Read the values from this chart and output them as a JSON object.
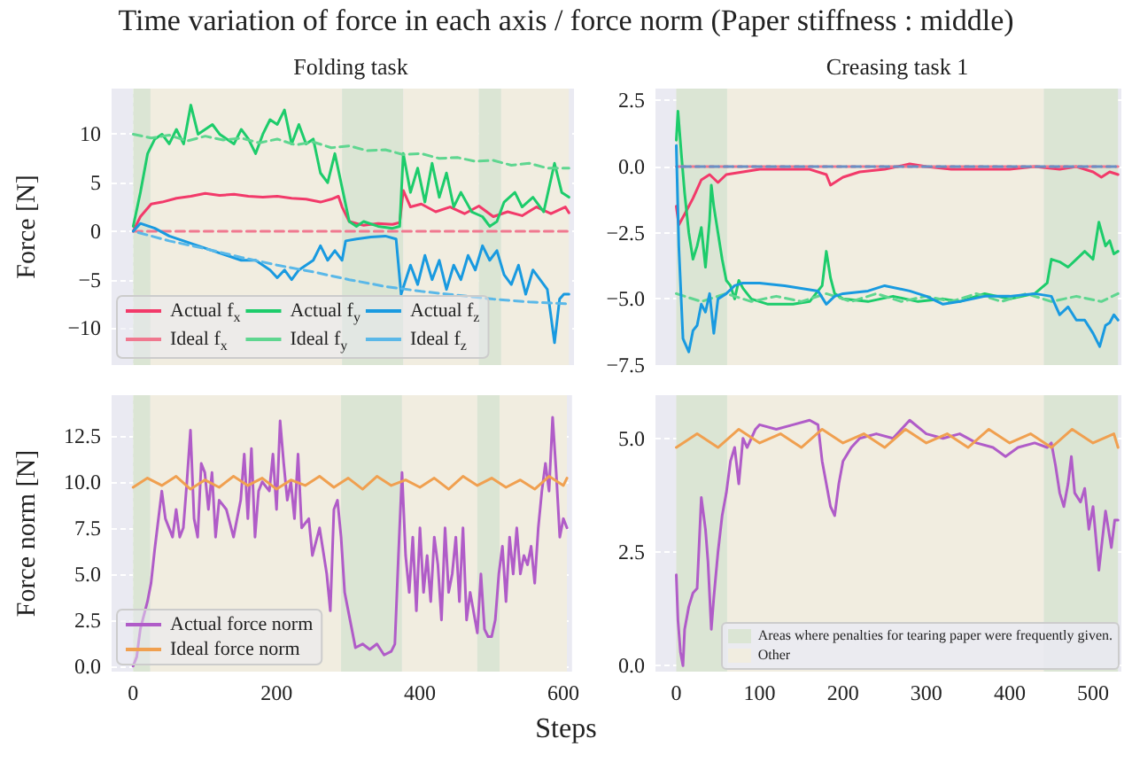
{
  "chart_data": [
    {
      "type": "line",
      "title": "Folding task",
      "ylabel": "Force [N]",
      "annotations": [
        "Time variation of force in each axis / force norm (Paper stiffness : middle)"
      ],
      "xlim": [
        -30,
        612
      ],
      "xticks": [
        0,
        200,
        400,
        600
      ],
      "ylim": [
        -13.8,
        14.7
      ],
      "yticks": [
        {
          "value": -10,
          "label": "−10"
        },
        {
          "value": -5,
          "label": "−5"
        },
        0,
        5,
        10
      ],
      "tick_labels": "y",
      "grid": true,
      "legend": "bottom left",
      "bands": [
        {
          "axis": "x",
          "from": 0,
          "to": 24,
          "color": "#dbe5d4"
        },
        {
          "axis": "x",
          "from": 24,
          "to": 290,
          "color": "#f1ede0"
        },
        {
          "axis": "x",
          "from": 290,
          "to": 375,
          "color": "#dbe5d4"
        },
        {
          "axis": "x",
          "from": 375,
          "to": 480,
          "color": "#f1ede0"
        },
        {
          "axis": "x",
          "from": 480,
          "to": 511,
          "color": "#dbe5d4"
        },
        {
          "axis": "x",
          "from": 511,
          "to": 605,
          "color": "#f1ede0"
        }
      ],
      "series": [
        {
          "name": "Actual f$_{x}$",
          "color": "#f23a6a",
          "x": [
            0,
            10,
            25,
            40,
            60,
            80,
            100,
            120,
            140,
            160,
            180,
            200,
            220,
            240,
            260,
            275,
            285,
            290,
            300,
            320,
            340,
            360,
            370,
            375,
            385,
            400,
            420,
            440,
            460,
            480,
            500,
            520,
            540,
            560,
            580,
            600,
            605
          ],
          "values": [
            0,
            1.5,
            2.8,
            3.0,
            3.4,
            3.6,
            3.9,
            3.7,
            3.8,
            3.6,
            3.5,
            3.6,
            3.4,
            3.3,
            3.0,
            3.3,
            3.6,
            2.5,
            1.0,
            0.6,
            0.8,
            0.7,
            0.9,
            4.2,
            2.5,
            2.8,
            2.0,
            2.5,
            1.8,
            2.6,
            1.5,
            2.0,
            1.6,
            2.5,
            1.8,
            2.5,
            1.9
          ]
        },
        {
          "name": "Ideal f$_{x}$",
          "color": "#f0788f",
          "line_style": "dashed",
          "x": [
            0,
            605
          ],
          "values": [
            0,
            0
          ]
        },
        {
          "name": "Actual f$_{y}$",
          "color": "#1dcc6b",
          "x": [
            0,
            10,
            20,
            30,
            40,
            50,
            60,
            70,
            80,
            90,
            100,
            110,
            120,
            130,
            140,
            150,
            160,
            170,
            180,
            190,
            200,
            210,
            220,
            230,
            240,
            250,
            260,
            270,
            280,
            290,
            300,
            310,
            320,
            340,
            360,
            370,
            375,
            385,
            395,
            405,
            415,
            425,
            435,
            445,
            455,
            470,
            485,
            495,
            505,
            515,
            530,
            540,
            555,
            570,
            585,
            595,
            605
          ],
          "values": [
            0.5,
            4,
            8,
            9.5,
            10,
            9,
            10.5,
            9,
            13,
            10,
            10.5,
            11,
            10,
            9.5,
            9,
            10.5,
            9.5,
            8,
            10,
            11.5,
            11,
            12.5,
            9,
            11,
            9,
            9.5,
            6,
            5,
            8,
            4.5,
            1,
            0.5,
            1,
            0.5,
            0.3,
            0.5,
            8,
            4,
            6.5,
            3,
            7,
            3.5,
            6,
            2.5,
            4,
            2,
            1.5,
            0.5,
            1,
            3,
            4,
            2.5,
            3.5,
            2,
            7,
            4,
            3.5
          ]
        },
        {
          "name": "Ideal f$_{y}$",
          "color": "#5fd690",
          "line_style": "dashed",
          "x": [
            0,
            25,
            50,
            75,
            100,
            125,
            150,
            175,
            200,
            225,
            250,
            275,
            300,
            325,
            350,
            375,
            400,
            425,
            450,
            475,
            500,
            525,
            550,
            575,
            605
          ],
          "values": [
            10.0,
            9.6,
            9.9,
            9.3,
            9.8,
            9.4,
            9.6,
            9.1,
            9.5,
            8.9,
            9.2,
            8.6,
            8.8,
            8.3,
            8.4,
            7.9,
            8.0,
            7.5,
            7.6,
            7.2,
            7.3,
            6.8,
            7.0,
            6.5,
            6.5
          ]
        },
        {
          "name": "Actual f$_{z}$",
          "color": "#199ae0",
          "x": [
            0,
            10,
            30,
            50,
            70,
            90,
            110,
            130,
            150,
            170,
            190,
            200,
            210,
            220,
            230,
            240,
            250,
            260,
            270,
            280,
            290,
            295,
            310,
            330,
            350,
            365,
            372,
            385,
            395,
            405,
            415,
            425,
            435,
            445,
            455,
            465,
            475,
            485,
            495,
            505,
            515,
            525,
            535,
            545,
            555,
            565,
            575,
            585,
            592,
            598,
            605
          ],
          "values": [
            0,
            0.8,
            0.3,
            -0.5,
            -1,
            -1.5,
            -2,
            -2.5,
            -3,
            -3,
            -4,
            -4.8,
            -4,
            -5,
            -4,
            -3.5,
            -3,
            -1.5,
            -3,
            -2,
            -3,
            -1,
            -0.8,
            -0.6,
            -0.5,
            -0.8,
            -6.5,
            -3.5,
            -5.5,
            -2.5,
            -5,
            -3,
            -6,
            -3.5,
            -5,
            -2.5,
            -4,
            -1.5,
            -3,
            -2,
            -4.5,
            -5.5,
            -3.5,
            -6.5,
            -4,
            -5,
            -6,
            -11.5,
            -7,
            -6.5,
            -6.5
          ]
        },
        {
          "name": "Ideal f$_{z}$",
          "color": "#5ab8e8",
          "line_style": "dashed",
          "x": [
            0,
            50,
            100,
            150,
            200,
            250,
            300,
            350,
            400,
            450,
            500,
            550,
            605
          ],
          "values": [
            0,
            -1.0,
            -1.8,
            -2.7,
            -3.5,
            -4.2,
            -5.0,
            -5.7,
            -6.2,
            -6.6,
            -7.0,
            -7.3,
            -7.5
          ]
        }
      ]
    },
    {
      "type": "line",
      "title": "Creasing task 1",
      "xlim": [
        -25,
        534
      ],
      "xticks": [
        0,
        100,
        200,
        300,
        400,
        500
      ],
      "ylim": [
        -7.5,
        2.95
      ],
      "yticks": [
        {
          "value": -7.5,
          "label": "−7.5"
        },
        {
          "value": -5,
          "label": "−5.0"
        },
        {
          "value": -2.5,
          "label": "−2.5"
        },
        {
          "value": 0,
          "label": "0.0"
        },
        2.5
      ],
      "tick_labels": "y",
      "grid": true,
      "bands": [
        {
          "axis": "x",
          "from": 0,
          "to": 61,
          "color": "#dbe5d4"
        },
        {
          "axis": "x",
          "from": 61,
          "to": 441,
          "color": "#f1ede0"
        },
        {
          "axis": "x",
          "from": 441,
          "to": 530,
          "color": "#dbe5d4"
        }
      ],
      "series": [
        {
          "color": "#f23a6a",
          "x": [
            0,
            3,
            10,
            20,
            30,
            40,
            50,
            60,
            80,
            100,
            130,
            160,
            180,
            185,
            200,
            220,
            250,
            280,
            300,
            330,
            360,
            400,
            430,
            460,
            480,
            500,
            510,
            520,
            530
          ],
          "values": [
            -1.5,
            -2.2,
            -1.8,
            -1.2,
            -0.5,
            -0.3,
            -0.6,
            -0.3,
            -0.2,
            -0.1,
            -0.1,
            -0.1,
            -0.3,
            -0.7,
            -0.4,
            -0.2,
            -0.1,
            0.1,
            0.0,
            -0.1,
            -0.1,
            -0.1,
            0.0,
            -0.1,
            0.0,
            -0.2,
            -0.4,
            -0.2,
            -0.3
          ]
        },
        {
          "color": "#1dcc6b",
          "x": [
            0,
            2,
            6,
            10,
            15,
            20,
            25,
            30,
            35,
            40,
            42,
            45,
            50,
            55,
            60,
            65,
            70,
            75,
            80,
            90,
            110,
            140,
            160,
            175,
            180,
            185,
            190,
            200,
            230,
            260,
            290,
            320,
            340,
            370,
            400,
            430,
            445,
            450,
            460,
            470,
            480,
            490,
            500,
            507,
            515,
            520,
            525,
            530
          ],
          "values": [
            1.0,
            2.1,
            0.5,
            -1,
            -2.5,
            -3.5,
            -3,
            -2.3,
            -3.8,
            -2,
            -0.7,
            -1.5,
            -2.5,
            -3.5,
            -4.3,
            -4.5,
            -5,
            -4.3,
            -4.6,
            -5.0,
            -5.2,
            -5.2,
            -5.1,
            -4.5,
            -3.2,
            -4.2,
            -4.8,
            -5.0,
            -5.1,
            -4.9,
            -5.1,
            -5.0,
            -5.1,
            -4.8,
            -5.0,
            -4.8,
            -4.4,
            -3.5,
            -3.6,
            -3.8,
            -3.5,
            -3.2,
            -3.5,
            -2.1,
            -3.0,
            -2.8,
            -3.3,
            -3.2
          ]
        },
        {
          "color": "#f0788f",
          "line_style": "dashed",
          "x": [
            0,
            530
          ],
          "values": [
            0,
            0
          ]
        },
        {
          "color": "#5fd690",
          "line_style": "dashed",
          "x": [
            0,
            30,
            60,
            90,
            120,
            150,
            180,
            210,
            240,
            270,
            300,
            330,
            360,
            390,
            420,
            450,
            480,
            510,
            530
          ],
          "values": [
            -4.8,
            -5.1,
            -4.8,
            -5.1,
            -4.9,
            -5.1,
            -4.8,
            -5.1,
            -4.8,
            -5.1,
            -4.9,
            -5.1,
            -4.8,
            -5.1,
            -4.8,
            -5.1,
            -4.9,
            -5.1,
            -4.8
          ]
        },
        {
          "color": "#199ae0",
          "x": [
            0,
            3,
            8,
            15,
            20,
            25,
            30,
            35,
            40,
            45,
            50,
            60,
            70,
            80,
            100,
            130,
            150,
            170,
            180,
            190,
            200,
            230,
            250,
            280,
            300,
            320,
            340,
            370,
            400,
            430,
            450,
            460,
            470,
            480,
            490,
            500,
            508,
            515,
            520,
            525,
            530
          ],
          "values": [
            0.8,
            -3,
            -6.5,
            -7.0,
            -6.2,
            -6,
            -5.2,
            -5.5,
            -4.8,
            -6.3,
            -5,
            -4.8,
            -4.5,
            -4.4,
            -4.4,
            -4.5,
            -4.6,
            -4.7,
            -5.2,
            -4.9,
            -4.8,
            -4.7,
            -4.5,
            -4.7,
            -4.9,
            -5.2,
            -5.1,
            -4.9,
            -4.9,
            -4.8,
            -4.9,
            -5.6,
            -5.3,
            -5.8,
            -5.8,
            -6.3,
            -6.8,
            -6.0,
            -5.9,
            -5.6,
            -5.8
          ]
        },
        {
          "color": "#6a8fc4",
          "line_style": "dashed",
          "x": [
            0,
            530
          ],
          "values": [
            0,
            0
          ]
        }
      ]
    },
    {
      "type": "line",
      "ylabel": "Force norm [N]",
      "xlim": [
        -30,
        612
      ],
      "xticks": [
        0,
        200,
        400,
        600
      ],
      "ylim": [
        -0.3,
        14.7
      ],
      "yticks": [
        {
          "value": 0,
          "label": "0.0"
        },
        2.5,
        {
          "value": 5,
          "label": "5.0"
        },
        7.5,
        {
          "value": 10,
          "label": "10.0"
        },
        12.5
      ],
      "grid": true,
      "legend": "bottom left",
      "bands": [
        {
          "axis": "x",
          "from": 0,
          "to": 24,
          "color": "#dbe5d4"
        },
        {
          "axis": "x",
          "from": 24,
          "to": 290,
          "color": "#f1ede0"
        },
        {
          "axis": "x",
          "from": 290,
          "to": 375,
          "color": "#dbe5d4"
        },
        {
          "axis": "x",
          "from": 375,
          "to": 480,
          "color": "#f1ede0"
        },
        {
          "axis": "x",
          "from": 480,
          "to": 511,
          "color": "#dbe5d4"
        },
        {
          "axis": "x",
          "from": 511,
          "to": 605,
          "color": "#f1ede0"
        }
      ],
      "series": [
        {
          "name": "Actual force norm",
          "color": "#b05cc8",
          "x": [
            0,
            5,
            10,
            20,
            25,
            30,
            40,
            45,
            55,
            60,
            65,
            70,
            75,
            80,
            85,
            90,
            95,
            100,
            105,
            110,
            115,
            120,
            130,
            140,
            150,
            155,
            160,
            165,
            170,
            175,
            180,
            190,
            195,
            200,
            205,
            210,
            215,
            220,
            225,
            230,
            235,
            245,
            250,
            260,
            270,
            275,
            280,
            285,
            290,
            295,
            300,
            305,
            310,
            320,
            330,
            340,
            350,
            360,
            365,
            370,
            375,
            380,
            385,
            390,
            395,
            400,
            405,
            410,
            415,
            420,
            425,
            430,
            435,
            440,
            445,
            450,
            455,
            460,
            465,
            470,
            480,
            485,
            490,
            495,
            500,
            505,
            510,
            515,
            520,
            525,
            530,
            535,
            540,
            545,
            550,
            555,
            560,
            565,
            570,
            575,
            580,
            585,
            590,
            595,
            600,
            605
          ],
          "values": [
            0,
            0.5,
            2,
            3.5,
            4.5,
            6.3,
            9.5,
            8,
            7,
            8.5,
            7,
            7.5,
            10,
            12.8,
            8,
            7,
            11,
            10.5,
            8.5,
            10.5,
            7,
            9,
            8.5,
            7,
            9,
            11.5,
            8,
            11.8,
            7,
            9.5,
            10,
            9.5,
            11.5,
            8.5,
            13.3,
            11,
            9,
            10,
            8,
            11.5,
            7.5,
            8,
            6,
            7.5,
            5,
            3,
            8.5,
            9,
            7,
            4,
            3,
            2,
            1,
            1.2,
            0.9,
            1.2,
            0.6,
            0.8,
            1.2,
            6,
            10.5,
            6,
            4,
            7,
            3,
            7.5,
            4,
            6,
            3.5,
            7,
            5.5,
            2.5,
            7.5,
            4,
            5,
            7,
            3.5,
            7.5,
            2.5,
            4,
            1.8,
            5,
            2,
            1.6,
            1.6,
            2.5,
            5,
            6.5,
            3.5,
            7,
            5,
            7.5,
            5,
            6,
            5.5,
            6.5,
            4.5,
            7.5,
            9.5,
            11,
            9.5,
            13.5,
            10.5,
            7,
            8,
            7.5
          ]
        },
        {
          "name": "Ideal force norm",
          "color": "#f0a050",
          "x": [
            0,
            20,
            40,
            60,
            80,
            100,
            120,
            140,
            160,
            180,
            200,
            220,
            240,
            260,
            280,
            300,
            320,
            340,
            360,
            380,
            400,
            420,
            440,
            460,
            480,
            500,
            520,
            540,
            560,
            580,
            600,
            605
          ],
          "values": [
            9.7,
            10.2,
            9.8,
            10.3,
            9.6,
            10.1,
            9.7,
            10.3,
            9.8,
            10.2,
            9.6,
            10.1,
            9.8,
            10.3,
            9.7,
            10.2,
            9.6,
            10.3,
            9.8,
            10.1,
            9.7,
            10.2,
            9.6,
            10.3,
            9.8,
            10.2,
            9.7,
            10.1,
            9.6,
            10.3,
            9.8,
            10.2
          ]
        }
      ]
    },
    {
      "type": "line",
      "xlabel": "Steps",
      "xlim": [
        -25,
        534
      ],
      "xticks": [
        0,
        100,
        200,
        300,
        400,
        500
      ],
      "ylim": [
        -0.13,
        5.95
      ],
      "yticks": [
        {
          "value": 0,
          "label": "0.0"
        },
        2.5,
        {
          "value": 5,
          "label": "5.0"
        }
      ],
      "grid": true,
      "legend": "bottom right",
      "bands": [
        {
          "axis": "x",
          "from": 0,
          "to": 61,
          "color": "#dbe5d4",
          "label": "Areas where penalties for tearing paper were frequently given."
        },
        {
          "axis": "x",
          "from": 61,
          "to": 441,
          "color": "#f1ede0",
          "label": "Other"
        },
        {
          "axis": "x",
          "from": 441,
          "to": 530,
          "color": "#dbe5d4"
        }
      ],
      "series": [
        {
          "color": "#b05cc8",
          "x": [
            0,
            2,
            5,
            8,
            10,
            15,
            20,
            25,
            30,
            35,
            38,
            42,
            45,
            50,
            55,
            60,
            65,
            70,
            75,
            80,
            85,
            90,
            95,
            100,
            120,
            140,
            160,
            170,
            175,
            180,
            185,
            190,
            195,
            200,
            210,
            220,
            240,
            260,
            270,
            280,
            300,
            320,
            340,
            360,
            380,
            395,
            410,
            430,
            445,
            450,
            455,
            460,
            465,
            470,
            474,
            478,
            485,
            490,
            495,
            500,
            507,
            515,
            522,
            526,
            530
          ],
          "values": [
            2.0,
            1.0,
            0.3,
            0.0,
            0.8,
            1.3,
            1.6,
            1.7,
            3.7,
            3,
            2.3,
            0.8,
            1.5,
            2.5,
            3.3,
            3.8,
            4.5,
            4.8,
            4.0,
            5.0,
            4.8,
            5.0,
            5.2,
            5.3,
            5.2,
            5.3,
            5.4,
            5.3,
            4.5,
            4.0,
            3.5,
            3.3,
            4.0,
            4.5,
            4.8,
            5.0,
            5.1,
            5.0,
            5.2,
            5.4,
            5.1,
            5.0,
            5.1,
            4.9,
            4.8,
            4.6,
            4.8,
            4.9,
            4.8,
            4.9,
            4.4,
            3.8,
            3.5,
            4.0,
            4.6,
            3.8,
            3.6,
            3.9,
            3.0,
            3.5,
            2.1,
            3.4,
            2.6,
            3.2,
            3.2
          ]
        },
        {
          "color": "#f0a050",
          "x": [
            0,
            25,
            50,
            75,
            100,
            125,
            150,
            175,
            200,
            225,
            250,
            275,
            300,
            325,
            350,
            375,
            400,
            425,
            450,
            475,
            500,
            525,
            530
          ],
          "values": [
            4.8,
            5.1,
            4.8,
            5.2,
            4.9,
            5.1,
            4.8,
            5.2,
            4.9,
            5.1,
            4.8,
            5.2,
            4.9,
            5.1,
            4.8,
            5.2,
            4.9,
            5.1,
            4.8,
            5.2,
            4.9,
            5.1,
            4.8
          ]
        }
      ]
    }
  ]
}
